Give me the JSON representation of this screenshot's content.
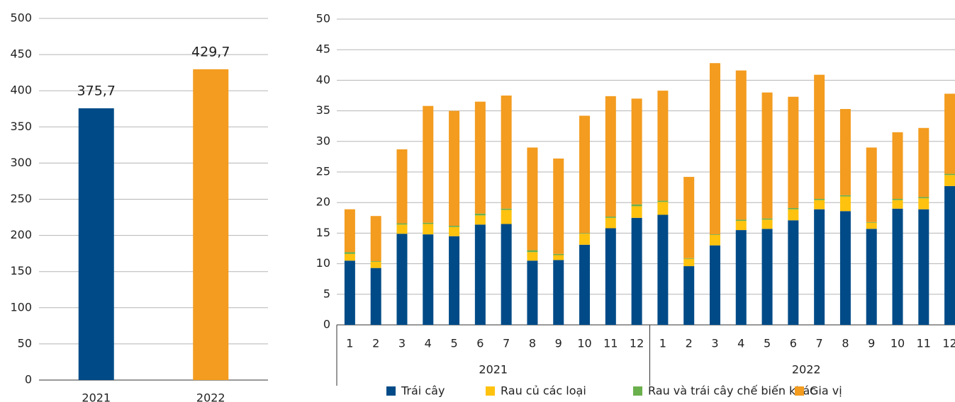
{
  "chart_data": [
    {
      "type": "bar",
      "categories": [
        "2021",
        "2022"
      ],
      "values": [
        375.7,
        429.7
      ],
      "value_labels": [
        "375,7",
        "429,7"
      ],
      "colors": [
        "#004b87",
        "#f39c1f"
      ],
      "ylim": [
        0,
        500
      ],
      "yticks": [
        0,
        50,
        100,
        150,
        200,
        250,
        300,
        350,
        400,
        450,
        500
      ],
      "grid": true
    },
    {
      "type": "stacked_bar",
      "categories": [
        "1",
        "2",
        "3",
        "4",
        "5",
        "6",
        "7",
        "8",
        "9",
        "10",
        "11",
        "12",
        "1",
        "2",
        "3",
        "4",
        "5",
        "6",
        "7",
        "8",
        "9",
        "10",
        "11",
        "12"
      ],
      "groups": [
        "2021",
        "2022"
      ],
      "series": [
        {
          "name": "Trái cây",
          "color": "#004b87",
          "values": [
            10.5,
            9.3,
            14.9,
            14.8,
            14.5,
            16.4,
            16.5,
            10.5,
            10.6,
            13.1,
            15.8,
            17.5,
            18.0,
            9.6,
            13.0,
            15.5,
            15.7,
            17.1,
            18.9,
            18.6,
            15.7,
            19.0,
            18.9,
            22.7
          ]
        },
        {
          "name": "Rau củ các loại",
          "color": "#ffc20e",
          "values": [
            1.1,
            1.0,
            1.5,
            1.7,
            1.5,
            1.5,
            2.3,
            1.4,
            0.8,
            1.8,
            1.7,
            1.9,
            2.1,
            1.2,
            1.7,
            1.5,
            1.5,
            1.8,
            1.5,
            2.4,
            1.0,
            1.4,
            1.8,
            1.8
          ]
        },
        {
          "name": "Rau và trái cây chế biến khác",
          "color": "#6ab04c",
          "values": [
            0.3,
            0.1,
            0.2,
            0.2,
            0.2,
            0.3,
            0.2,
            0.3,
            0.2,
            0.1,
            0.2,
            0.3,
            0.2,
            0.1,
            0.1,
            0.2,
            0.2,
            0.2,
            0.2,
            0.2,
            0.1,
            0.2,
            0.2,
            0.2
          ]
        },
        {
          "name": "Gia vị",
          "color": "#f39c1f",
          "values": [
            7.0,
            7.4,
            12.1,
            19.1,
            18.8,
            18.3,
            18.5,
            16.8,
            15.6,
            19.2,
            19.7,
            17.3,
            18.0,
            13.3,
            28.0,
            24.4,
            20.6,
            18.2,
            20.3,
            14.1,
            12.2,
            10.9,
            11.3,
            13.1
          ]
        }
      ],
      "ylim": [
        0,
        50
      ],
      "yticks": [
        0,
        5,
        10,
        15,
        20,
        25,
        30,
        35,
        40,
        45,
        50
      ],
      "grid": true,
      "legend": "bottom"
    }
  ]
}
